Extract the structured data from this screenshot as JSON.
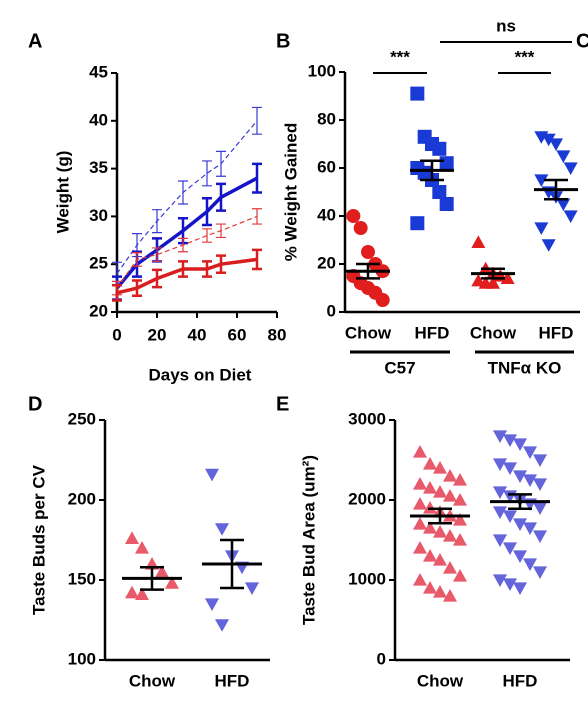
{
  "panel_c_label": "C",
  "chart_data": [
    {
      "type": "line",
      "label": "A",
      "ylabel": "Weight (g)",
      "xlabel": "Days on Diet",
      "xlim": [
        0,
        80
      ],
      "xticks": [
        0,
        20,
        40,
        60,
        80
      ],
      "ylim": [
        20,
        45
      ],
      "yticks": [
        20,
        25,
        30,
        35,
        40,
        45
      ],
      "x": [
        0,
        10,
        20,
        33,
        45,
        52,
        70
      ],
      "series": [
        {
          "color": "#3a3ad6",
          "dashed": true,
          "line_width": 1.2,
          "values": [
            24,
            27,
            29.5,
            32.5,
            34.5,
            35.5,
            40
          ],
          "errors": [
            1.2,
            1.2,
            1.2,
            1.2,
            1.3,
            1.3,
            1.4
          ]
        },
        {
          "color": "#1414c8",
          "dashed": false,
          "line_width": 3.5,
          "values": [
            22.5,
            25,
            26.5,
            28.5,
            30.5,
            32,
            34
          ],
          "errors": [
            1.2,
            1.3,
            1.2,
            1.3,
            1.4,
            1.4,
            1.5
          ]
        },
        {
          "color": "#e23a3a",
          "dashed": true,
          "line_width": 1.2,
          "values": [
            22.5,
            25.5,
            26,
            27,
            28,
            28.5,
            30
          ],
          "errors": [
            0.7,
            0.7,
            0.7,
            0.7,
            0.7,
            0.7,
            0.8
          ]
        },
        {
          "color": "#d81e1e",
          "dashed": false,
          "line_width": 3.5,
          "values": [
            22,
            22.5,
            23.5,
            24.5,
            24.5,
            25,
            25.5
          ],
          "errors": [
            0.8,
            0.8,
            0.9,
            0.8,
            0.8,
            0.9,
            1.0
          ]
        }
      ]
    },
    {
      "type": "strip",
      "label": "B",
      "ylabel": "% Weight Gained",
      "ylim": [
        0,
        100
      ],
      "yticks": [
        0,
        20,
        40,
        60,
        80,
        100
      ],
      "categories": [
        "Chow",
        "HFD",
        "Chow",
        "HFD"
      ],
      "group_labels": [
        "C57",
        "TNFα KO"
      ],
      "annotations": [
        "***",
        "***",
        "ns"
      ],
      "colors": [
        "#e01e1e",
        "#1a3ad6",
        "#e01e1e",
        "#1a3ad6"
      ],
      "markers": [
        "circle",
        "square",
        "triangle",
        "triangle-down"
      ],
      "points": [
        [
          40,
          35,
          25,
          20,
          17,
          15,
          12,
          10,
          8,
          5
        ],
        [
          91,
          73,
          70,
          68,
          62,
          60,
          58,
          55,
          50,
          45,
          37
        ],
        [
          29,
          18,
          16,
          15,
          14,
          13,
          12,
          12
        ],
        [
          73,
          72,
          70,
          65,
          60,
          55,
          50,
          48,
          45,
          40,
          35,
          28
        ]
      ],
      "means": [
        17,
        59,
        16,
        51
      ],
      "sems": [
        3,
        4,
        2,
        4
      ]
    },
    {
      "type": "strip",
      "label": "D",
      "ylabel": "Taste Buds per CV",
      "ylim": [
        100,
        250
      ],
      "yticks": [
        100,
        150,
        200,
        250
      ],
      "categories": [
        "Chow",
        "HFD"
      ],
      "colors": [
        "#e85a6a",
        "#6464dc"
      ],
      "markers": [
        "triangle",
        "triangle-down"
      ],
      "points": [
        [
          176,
          170,
          160,
          155,
          148,
          142,
          141
        ],
        [
          216,
          182,
          165,
          158,
          145,
          135,
          122
        ]
      ],
      "means": [
        151,
        160
      ],
      "sems": [
        7,
        15
      ]
    },
    {
      "type": "strip",
      "label": "E",
      "ylabel": "Taste Bud Area (um²)",
      "ylim": [
        0,
        3000
      ],
      "yticks": [
        0,
        1000,
        2000,
        3000
      ],
      "categories": [
        "Chow",
        "HFD"
      ],
      "colors": [
        "#e85a6a",
        "#6464dc"
      ],
      "markers": [
        "triangle",
        "triangle-down"
      ],
      "points": [
        [
          2600,
          2450,
          2400,
          2300,
          2250,
          2200,
          2150,
          2100,
          2050,
          2000,
          1950,
          1900,
          1850,
          1800,
          1750,
          1700,
          1650,
          1600,
          1550,
          1500,
          1400,
          1300,
          1250,
          1150,
          1050,
          1000,
          900,
          850,
          800
        ],
        [
          2800,
          2750,
          2700,
          2600,
          2500,
          2450,
          2400,
          2300,
          2250,
          2200,
          2100,
          2050,
          2000,
          1950,
          1900,
          1850,
          1800,
          1700,
          1650,
          1550,
          1500,
          1400,
          1300,
          1200,
          1100,
          1000,
          950,
          900
        ]
      ],
      "means": [
        1800,
        1980
      ],
      "sems": [
        90,
        90
      ]
    }
  ]
}
